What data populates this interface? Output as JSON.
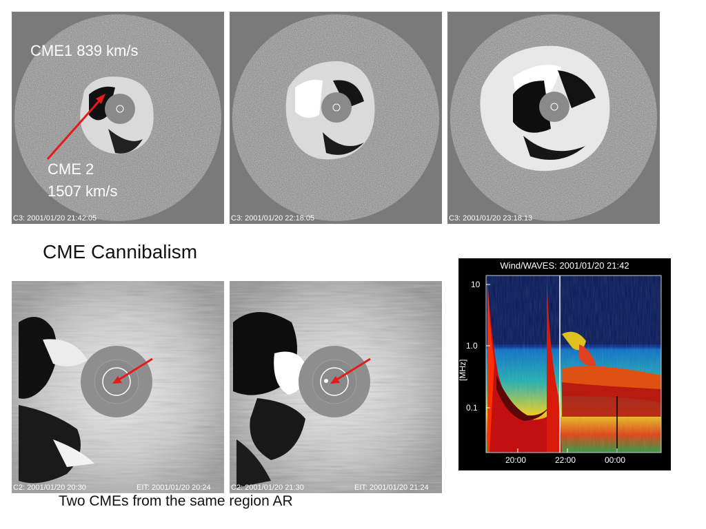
{
  "panels": {
    "c3_1": {
      "caption": "C3: 2001/01/20 21:42:05",
      "label_cme1": "CME1  839 km/s",
      "label_cme2_line1": "CME 2",
      "label_cme2_line2": "1507 km/s"
    },
    "c3_2": {
      "caption": "C3: 2001/01/20 22:18:05"
    },
    "c3_3": {
      "caption": "C3: 2001/01/20 23:18:13"
    },
    "c2_1": {
      "caption_c2": "C2: 2001/01/20 20:30",
      "caption_eit": "EIT: 2001/01/20 20:24"
    },
    "c2_2": {
      "caption_c2": "C2: 2001/01/20 21:30",
      "caption_eit": "EIT: 2001/01/20 21:24"
    }
  },
  "slide_title": "CME Cannibalism",
  "slide_subtitle": "Two CMEs from the same region AR",
  "spectrogram": {
    "title": "Wind/WAVES: 2001/01/20 21:42",
    "y_label": "[MHz]",
    "y_ticks": [
      "10",
      "1.0",
      "0.1"
    ],
    "x_ticks": [
      "20:00",
      "22:00",
      "00:00"
    ]
  },
  "colors": {
    "arrow": "#e31b1b",
    "background": "#7a7a7a"
  }
}
